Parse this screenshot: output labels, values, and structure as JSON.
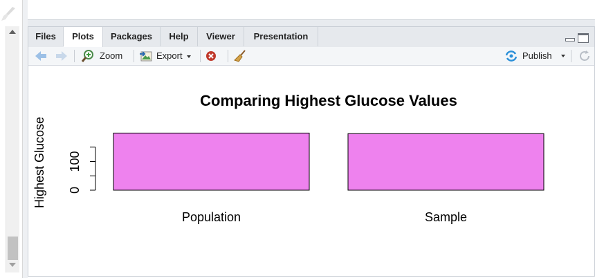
{
  "tabs": [
    {
      "label": "Files",
      "active": false
    },
    {
      "label": "Plots",
      "active": true
    },
    {
      "label": "Packages",
      "active": false
    },
    {
      "label": "Help",
      "active": false
    },
    {
      "label": "Viewer",
      "active": false
    },
    {
      "label": "Presentation",
      "active": false
    }
  ],
  "toolbar": {
    "back_icon": "arrow-left-icon",
    "forward_icon": "arrow-right-icon",
    "zoom_label": "Zoom",
    "export_label": "Export",
    "remove_icon": "remove-plot-icon",
    "clear_icon": "broom-icon",
    "publish_label": "Publish",
    "refresh_icon": "refresh-icon"
  },
  "colors": {
    "bar_fill": "#EE82EE",
    "accent": "#2a8fd8",
    "tab_bg": "#e6e9ed"
  },
  "chart_data": {
    "type": "bar",
    "title": "Comparing Highest Glucose Values",
    "xlabel": "",
    "ylabel": "Highest Glucose",
    "categories": [
      "Population",
      "Sample"
    ],
    "values": [
      199,
      197
    ],
    "yticks": [
      0,
      100
    ],
    "ylim": [
      0,
      199
    ]
  }
}
